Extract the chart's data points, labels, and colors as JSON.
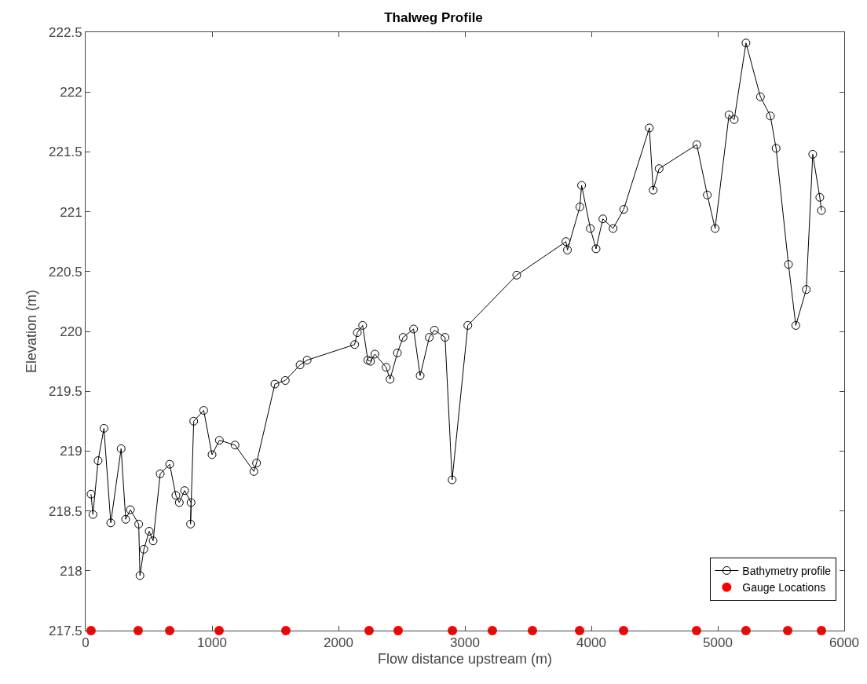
{
  "chart_data": {
    "type": "line",
    "title": "Thalweg Profile",
    "xlabel": "Flow distance upstream (m)",
    "ylabel": "Elevation (m)",
    "xlim": [
      0,
      6000
    ],
    "xticks": [
      0,
      1000,
      2000,
      3000,
      4000,
      5000,
      6000
    ],
    "ylim": [
      217.5,
      222.5
    ],
    "yticks": [
      217.5,
      218,
      218.5,
      219,
      219.5,
      220,
      220.5,
      221,
      221.5,
      222,
      222.5
    ],
    "grid": false,
    "legend": "bottom right",
    "series": [
      {
        "name": "Bathymetry profile",
        "marker": "circle",
        "line_style": "solid",
        "color": "#000000",
        "x": [
          43,
          58,
          99,
          145,
          199,
          281,
          317,
          354,
          420,
          430,
          461,
          503,
          534,
          590,
          665,
          714,
          741,
          783,
          834,
          830,
          855,
          934,
          1000,
          1058,
          1182,
          1331,
          1352,
          1497,
          1579,
          1696,
          1752,
          2128,
          2149,
          2191,
          2232,
          2253,
          2288,
          2377,
          2408,
          2466,
          2511,
          2594,
          2646,
          2718,
          2759,
          2843,
          2899,
          3023,
          3410,
          3799,
          3811,
          3909,
          3923,
          3992,
          4037,
          4091,
          4172,
          4256,
          4459,
          4489,
          4536,
          4834,
          4917,
          4979,
          5089,
          5130,
          5223,
          5337,
          5416,
          5461,
          5559,
          5617,
          5700,
          5751,
          5807,
          5820
        ],
        "values": [
          218.64,
          218.47,
          218.92,
          219.19,
          218.4,
          219.02,
          218.43,
          218.51,
          218.39,
          217.96,
          218.18,
          218.33,
          218.25,
          218.81,
          218.89,
          218.63,
          218.57,
          218.67,
          218.57,
          218.39,
          219.25,
          219.34,
          218.97,
          219.09,
          219.05,
          218.83,
          218.9,
          219.56,
          219.59,
          219.72,
          219.76,
          219.89,
          219.99,
          220.05,
          219.76,
          219.75,
          219.81,
          219.7,
          219.6,
          219.82,
          219.95,
          220.02,
          219.63,
          219.95,
          220.01,
          219.95,
          218.76,
          220.05,
          220.47,
          220.75,
          220.68,
          221.04,
          221.22,
          220.86,
          220.69,
          220.94,
          220.86,
          221.02,
          221.7,
          221.18,
          221.36,
          221.56,
          221.14,
          220.86,
          221.81,
          221.77,
          222.41,
          221.96,
          221.8,
          221.53,
          220.56,
          220.05,
          220.35,
          221.48,
          221.12,
          221.01
        ]
      },
      {
        "name": "Gauge Locations",
        "type": "scatter",
        "marker": "circle",
        "color": "#ff0000",
        "x": [
          43,
          416,
          665,
          1056,
          1584,
          2242,
          2472,
          2901,
          3217,
          3534,
          3907,
          4255,
          4832,
          5223,
          5553,
          5820
        ],
        "values": [
          217.5,
          217.5,
          217.5,
          217.5,
          217.5,
          217.5,
          217.5,
          217.5,
          217.5,
          217.5,
          217.5,
          217.5,
          217.5,
          217.5,
          217.5,
          217.5
        ]
      }
    ]
  }
}
